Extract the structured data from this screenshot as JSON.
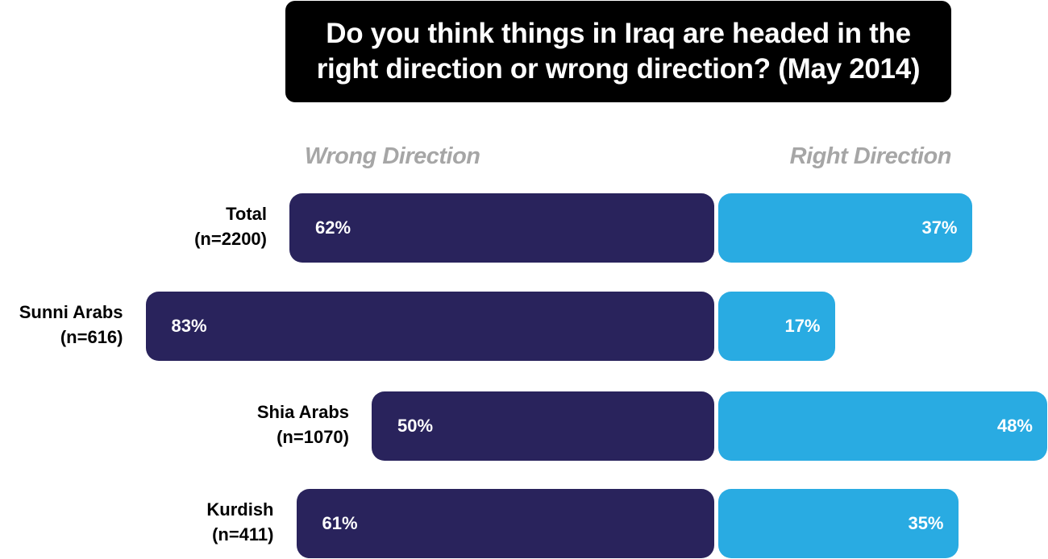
{
  "chart_data": {
    "type": "bar",
    "orientation": "horizontal-diverging",
    "title": "Do you think things in Iraq are headed in the right direction or wrong direction? (May 2014)",
    "series_labels": {
      "wrong": "Wrong Direction",
      "right": "Right Direction"
    },
    "categories": [
      {
        "name": "Total",
        "n": "(n=2200)",
        "wrong": 62,
        "right": 37,
        "wrong_label": "62%",
        "right_label": "37%"
      },
      {
        "name": "Sunni Arabs",
        "n": "(n=616)",
        "wrong": 83,
        "right": 17,
        "wrong_label": "83%",
        "right_label": "17%"
      },
      {
        "name": "Shia Arabs",
        "n": "(n=1070)",
        "wrong": 50,
        "right": 48,
        "wrong_label": "50%",
        "right_label": "48%"
      },
      {
        "name": "Kurdish",
        "n": "(n=411)",
        "wrong": 61,
        "right": 35,
        "wrong_label": "61%",
        "right_label": "35%"
      }
    ],
    "colors": {
      "wrong": "#29235c",
      "right": "#29abe2",
      "legend": "#a6a6a6",
      "title_bg": "#000000"
    },
    "legend_placement": "top"
  }
}
